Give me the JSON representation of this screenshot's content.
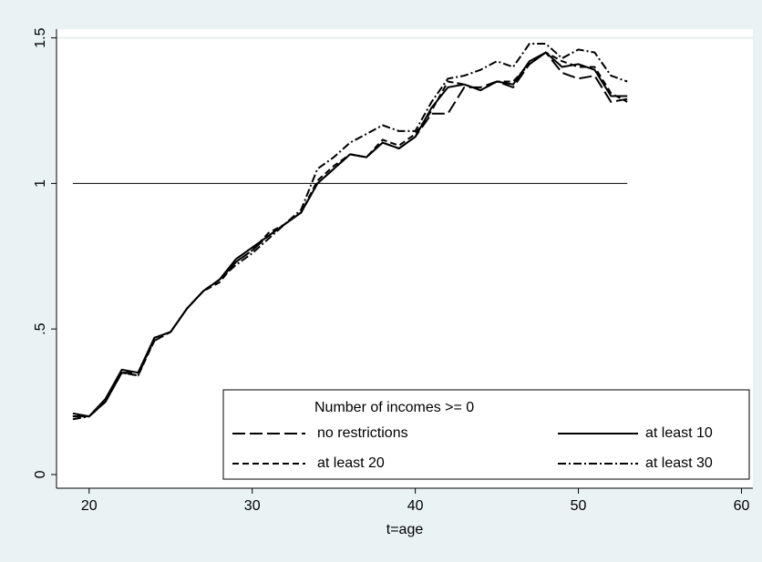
{
  "chart_data": {
    "type": "line",
    "x_label": "t=age",
    "x": [
      19,
      20,
      21,
      22,
      23,
      24,
      25,
      26,
      27,
      28,
      29,
      30,
      31,
      32,
      33,
      34,
      35,
      36,
      37,
      38,
      39,
      40,
      41,
      42,
      43,
      44,
      45,
      46,
      47,
      48,
      49,
      50,
      51,
      52,
      53
    ],
    "series": [
      {
        "name": "no restrictions",
        "color": "#000000",
        "dash": "14,5",
        "values": [
          0.2,
          0.2,
          0.25,
          0.35,
          0.35,
          0.46,
          0.49,
          0.57,
          0.63,
          0.67,
          0.73,
          0.77,
          0.82,
          0.86,
          0.9,
          1.0,
          1.05,
          1.1,
          1.09,
          1.14,
          1.12,
          1.16,
          1.24,
          1.24,
          1.33,
          1.33,
          1.35,
          1.33,
          1.41,
          1.45,
          1.38,
          1.36,
          1.37,
          1.28,
          1.29
        ]
      },
      {
        "name": "at least 10",
        "color": "#000000",
        "dash": "none",
        "values": [
          0.21,
          0.2,
          0.26,
          0.36,
          0.35,
          0.47,
          0.49,
          0.57,
          0.63,
          0.67,
          0.74,
          0.78,
          0.82,
          0.86,
          0.9,
          1.0,
          1.05,
          1.1,
          1.09,
          1.14,
          1.12,
          1.16,
          1.26,
          1.33,
          1.34,
          1.32,
          1.35,
          1.34,
          1.42,
          1.45,
          1.4,
          1.41,
          1.39,
          1.3,
          1.3
        ]
      },
      {
        "name": "at least 20",
        "color": "#000000",
        "dash": "7,4",
        "values": [
          0.2,
          0.2,
          0.25,
          0.35,
          0.34,
          0.46,
          0.49,
          0.57,
          0.63,
          0.66,
          0.73,
          0.77,
          0.83,
          0.86,
          0.9,
          1.01,
          1.06,
          1.1,
          1.09,
          1.15,
          1.13,
          1.17,
          1.25,
          1.35,
          1.34,
          1.32,
          1.35,
          1.35,
          1.41,
          1.45,
          1.42,
          1.4,
          1.4,
          1.31,
          1.28
        ]
      },
      {
        "name": "at least 30",
        "color": "#000000",
        "dash": "9,3,2,3",
        "values": [
          0.19,
          0.2,
          0.25,
          0.35,
          0.34,
          0.47,
          0.49,
          0.57,
          0.63,
          0.67,
          0.72,
          0.76,
          0.81,
          0.86,
          0.91,
          1.05,
          1.09,
          1.14,
          1.17,
          1.2,
          1.18,
          1.18,
          1.28,
          1.36,
          1.37,
          1.39,
          1.42,
          1.4,
          1.48,
          1.48,
          1.43,
          1.46,
          1.45,
          1.37,
          1.35
        ]
      }
    ],
    "legend_title": "Number of incomes >= 0",
    "legend_position": "bottom-right",
    "legend_columns": 2,
    "reference_line": {
      "y": 1,
      "x": [
        19,
        53
      ]
    },
    "ygrid": [
      1.5
    ],
    "xlim": [
      18,
      60.7
    ],
    "ylim": [
      -0.047,
      1.53
    ],
    "xticks": [
      20,
      30,
      40,
      50,
      60
    ],
    "yticks": [
      0,
      {
        "value": 0.5,
        "label": ".5"
      },
      1,
      1.5
    ]
  }
}
